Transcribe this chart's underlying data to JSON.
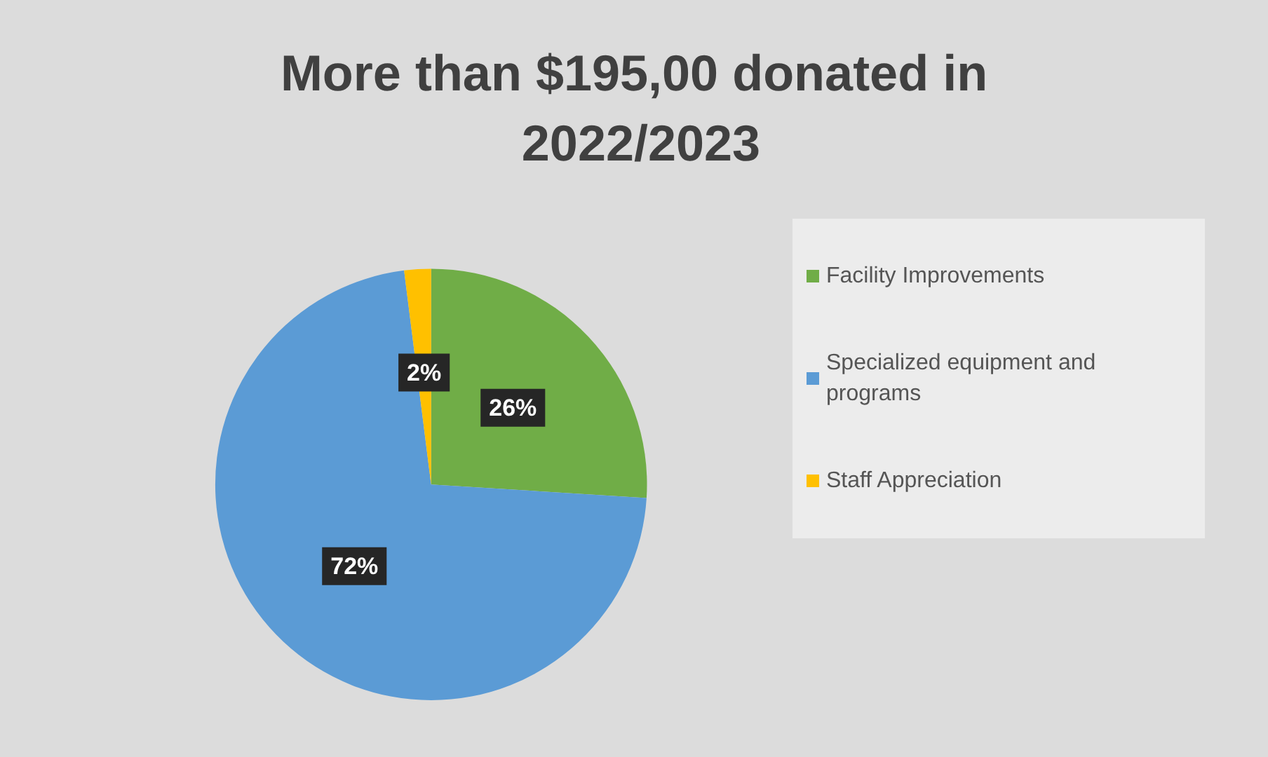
{
  "chart_data": {
    "type": "pie",
    "title": "More than $195,00 donated in 2022/2023",
    "categories": [
      "Facility Improvements",
      "Specialized equipment and programs",
      "Staff Appreciation"
    ],
    "values": [
      26,
      72,
      2
    ],
    "colors": [
      "#70ad47",
      "#5b9bd5",
      "#ffc000"
    ],
    "value_labels": [
      "26%",
      "72%",
      "2%"
    ],
    "legend": "right"
  }
}
